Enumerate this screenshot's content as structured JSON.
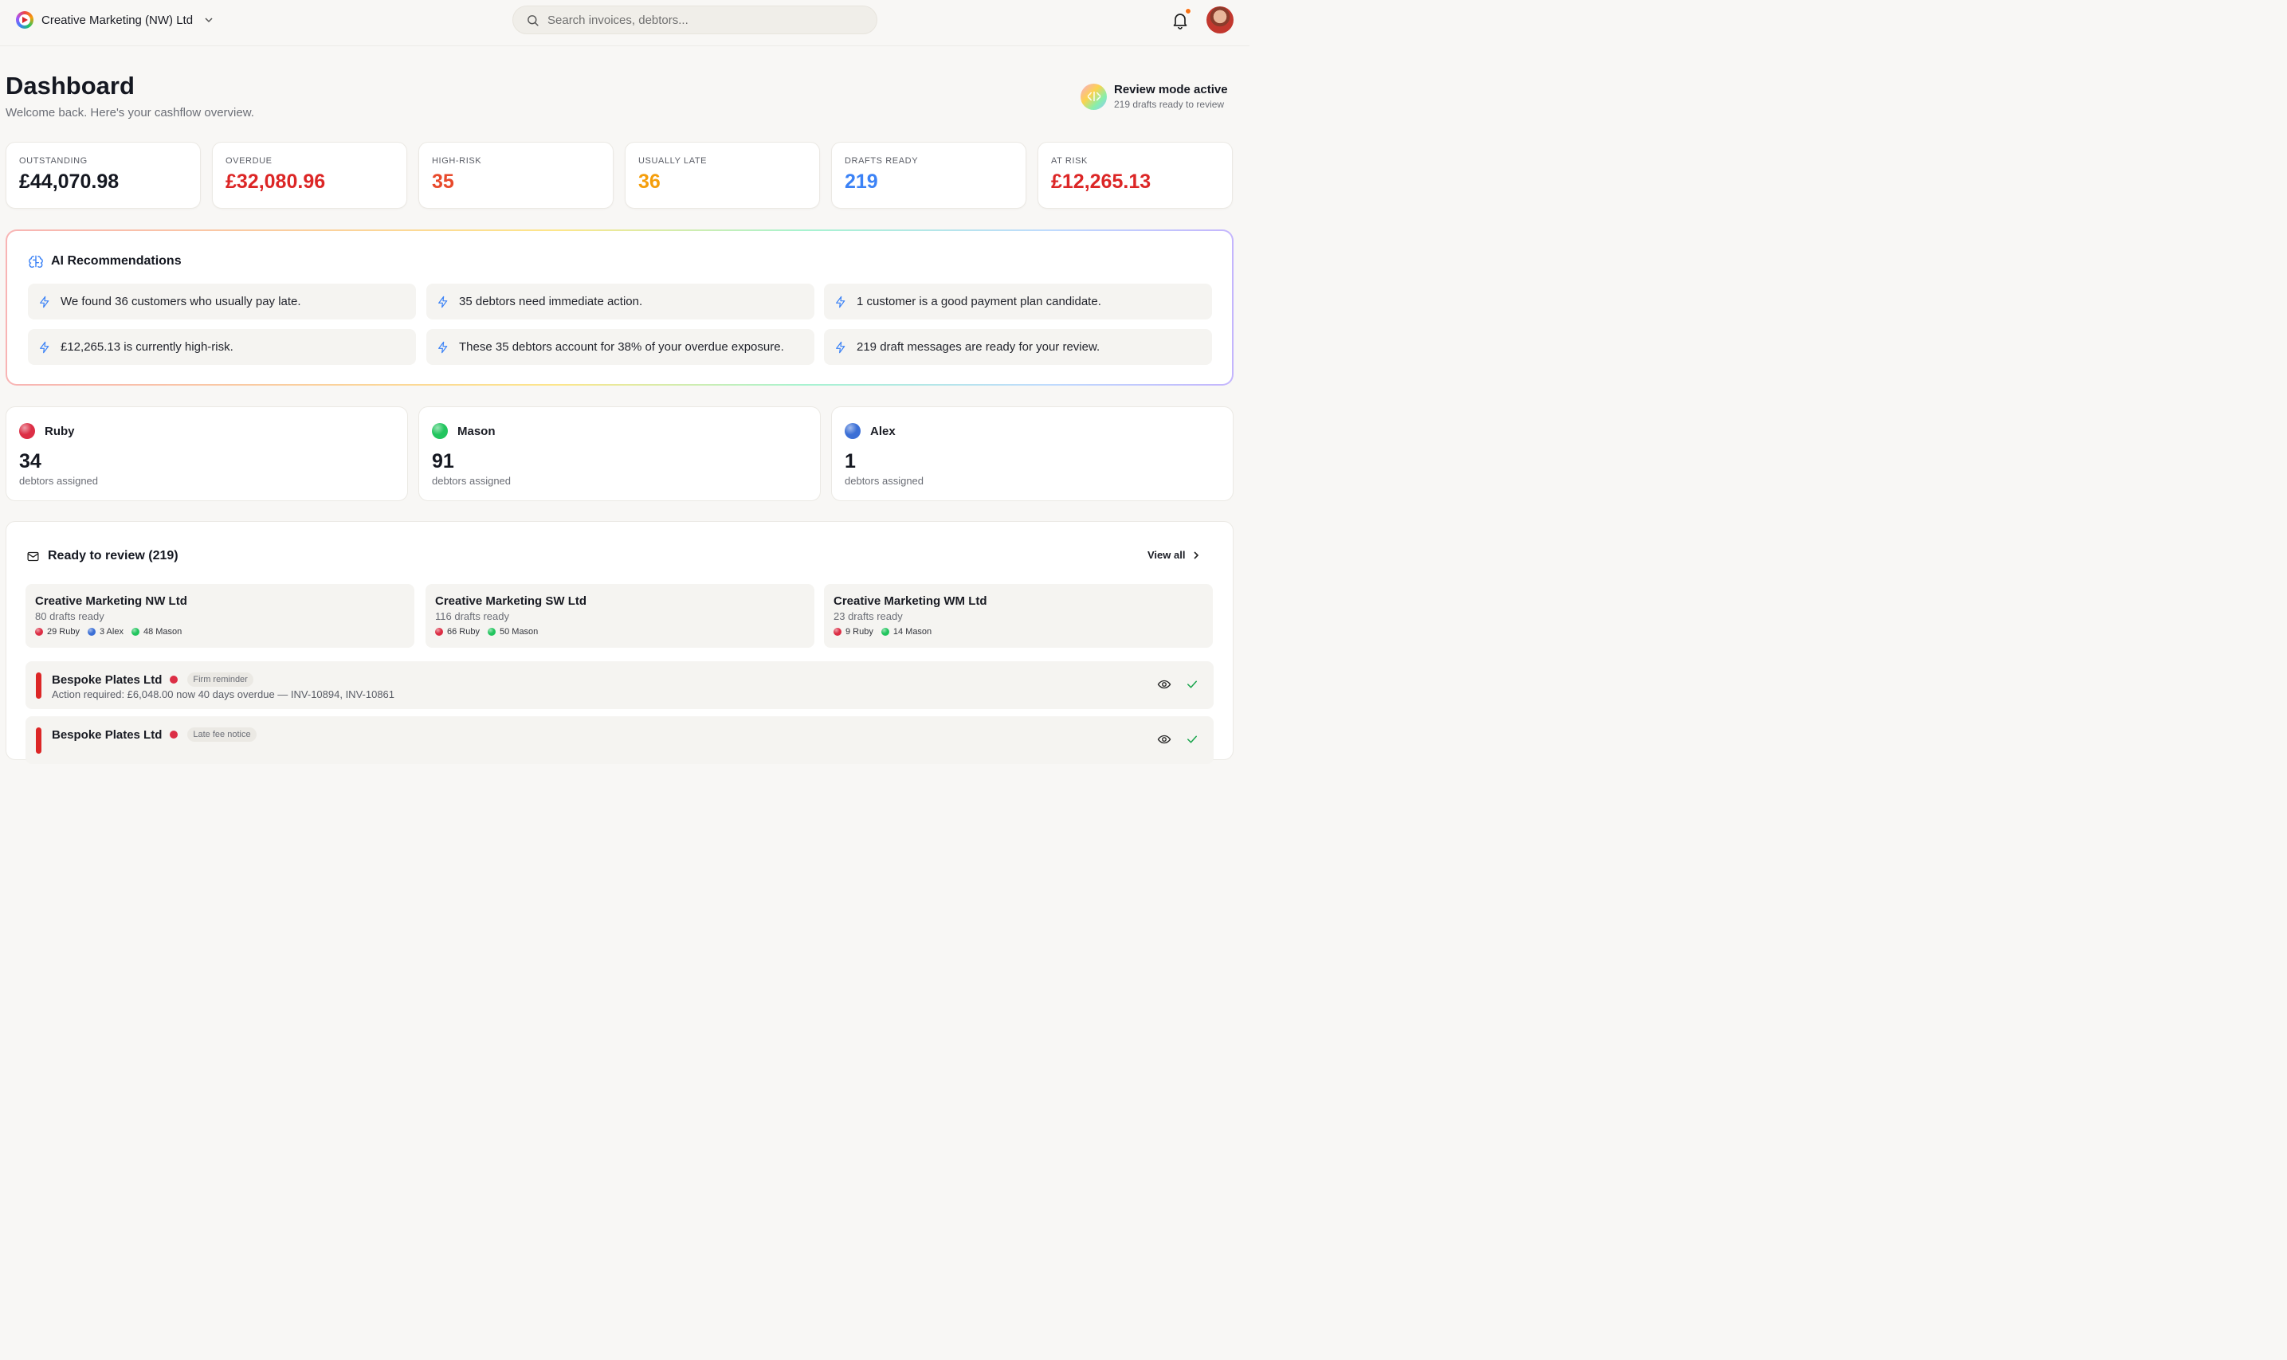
{
  "header": {
    "org_name": "Creative Marketing (NW) Ltd",
    "search_placeholder": "Search invoices, debtors..."
  },
  "page": {
    "title": "Dashboard",
    "subtitle": "Welcome back. Here's your cashflow overview."
  },
  "review_mode": {
    "title": "Review mode active",
    "subtitle": "219 drafts ready to review"
  },
  "stats": [
    {
      "label": "OUTSTANDING",
      "value": "£44,070.98",
      "color": "#151821"
    },
    {
      "label": "OVERDUE",
      "value": "£32,080.96",
      "color": "#dc2626"
    },
    {
      "label": "HIGH-RISK",
      "value": "35",
      "color": "#e8492b"
    },
    {
      "label": "USUALLY LATE",
      "value": "36",
      "color": "#f59e0b"
    },
    {
      "label": "DRAFTS READY",
      "value": "219",
      "color": "#3b82f6"
    },
    {
      "label": "AT RISK",
      "value": "£12,265.13",
      "color": "#dc2626"
    }
  ],
  "ai": {
    "title": "AI Recommendations",
    "items": [
      "We found 36 customers who usually pay late.",
      "35 debtors need immediate action.",
      "1 customer is a good payment plan candidate.",
      "£12,265.13 is currently high-risk.",
      "These 35 debtors account for 38% of your overdue exposure.",
      "219 draft messages are ready for your review."
    ]
  },
  "team": [
    {
      "name": "Ruby",
      "count": "34",
      "sub": "debtors assigned",
      "color": "#dc2e45"
    },
    {
      "name": "Mason",
      "count": "91",
      "sub": "debtors assigned",
      "color": "#22c55e"
    },
    {
      "name": "Alex",
      "count": "1",
      "sub": "debtors assigned",
      "color": "#3b6fd6"
    }
  ],
  "review": {
    "title": "Ready to review (219)",
    "view_all": "View all",
    "companies": [
      {
        "name": "Creative Marketing NW Ltd",
        "drafts": "80 drafts ready",
        "chips": [
          {
            "label": "29 Ruby",
            "color": "#dc2e45"
          },
          {
            "label": "3 Alex",
            "color": "#3b6fd6"
          },
          {
            "label": "48 Mason",
            "color": "#22c55e"
          }
        ]
      },
      {
        "name": "Creative Marketing SW Ltd",
        "drafts": "116 drafts ready",
        "chips": [
          {
            "label": "66 Ruby",
            "color": "#dc2e45"
          },
          {
            "label": "50 Mason",
            "color": "#22c55e"
          }
        ]
      },
      {
        "name": "Creative Marketing WM Ltd",
        "drafts": "23 drafts ready",
        "chips": [
          {
            "label": "9 Ruby",
            "color": "#dc2e45"
          },
          {
            "label": "14 Mason",
            "color": "#22c55e"
          }
        ]
      }
    ],
    "drafts": [
      {
        "name": "Bespoke Plates Ltd",
        "tag": "Firm reminder",
        "desc": "Action required: £6,048.00 now 40 days overdue — INV-10894, INV-10861"
      },
      {
        "name": "Bespoke Plates Ltd",
        "tag": "Late fee notice",
        "desc": ""
      }
    ]
  }
}
